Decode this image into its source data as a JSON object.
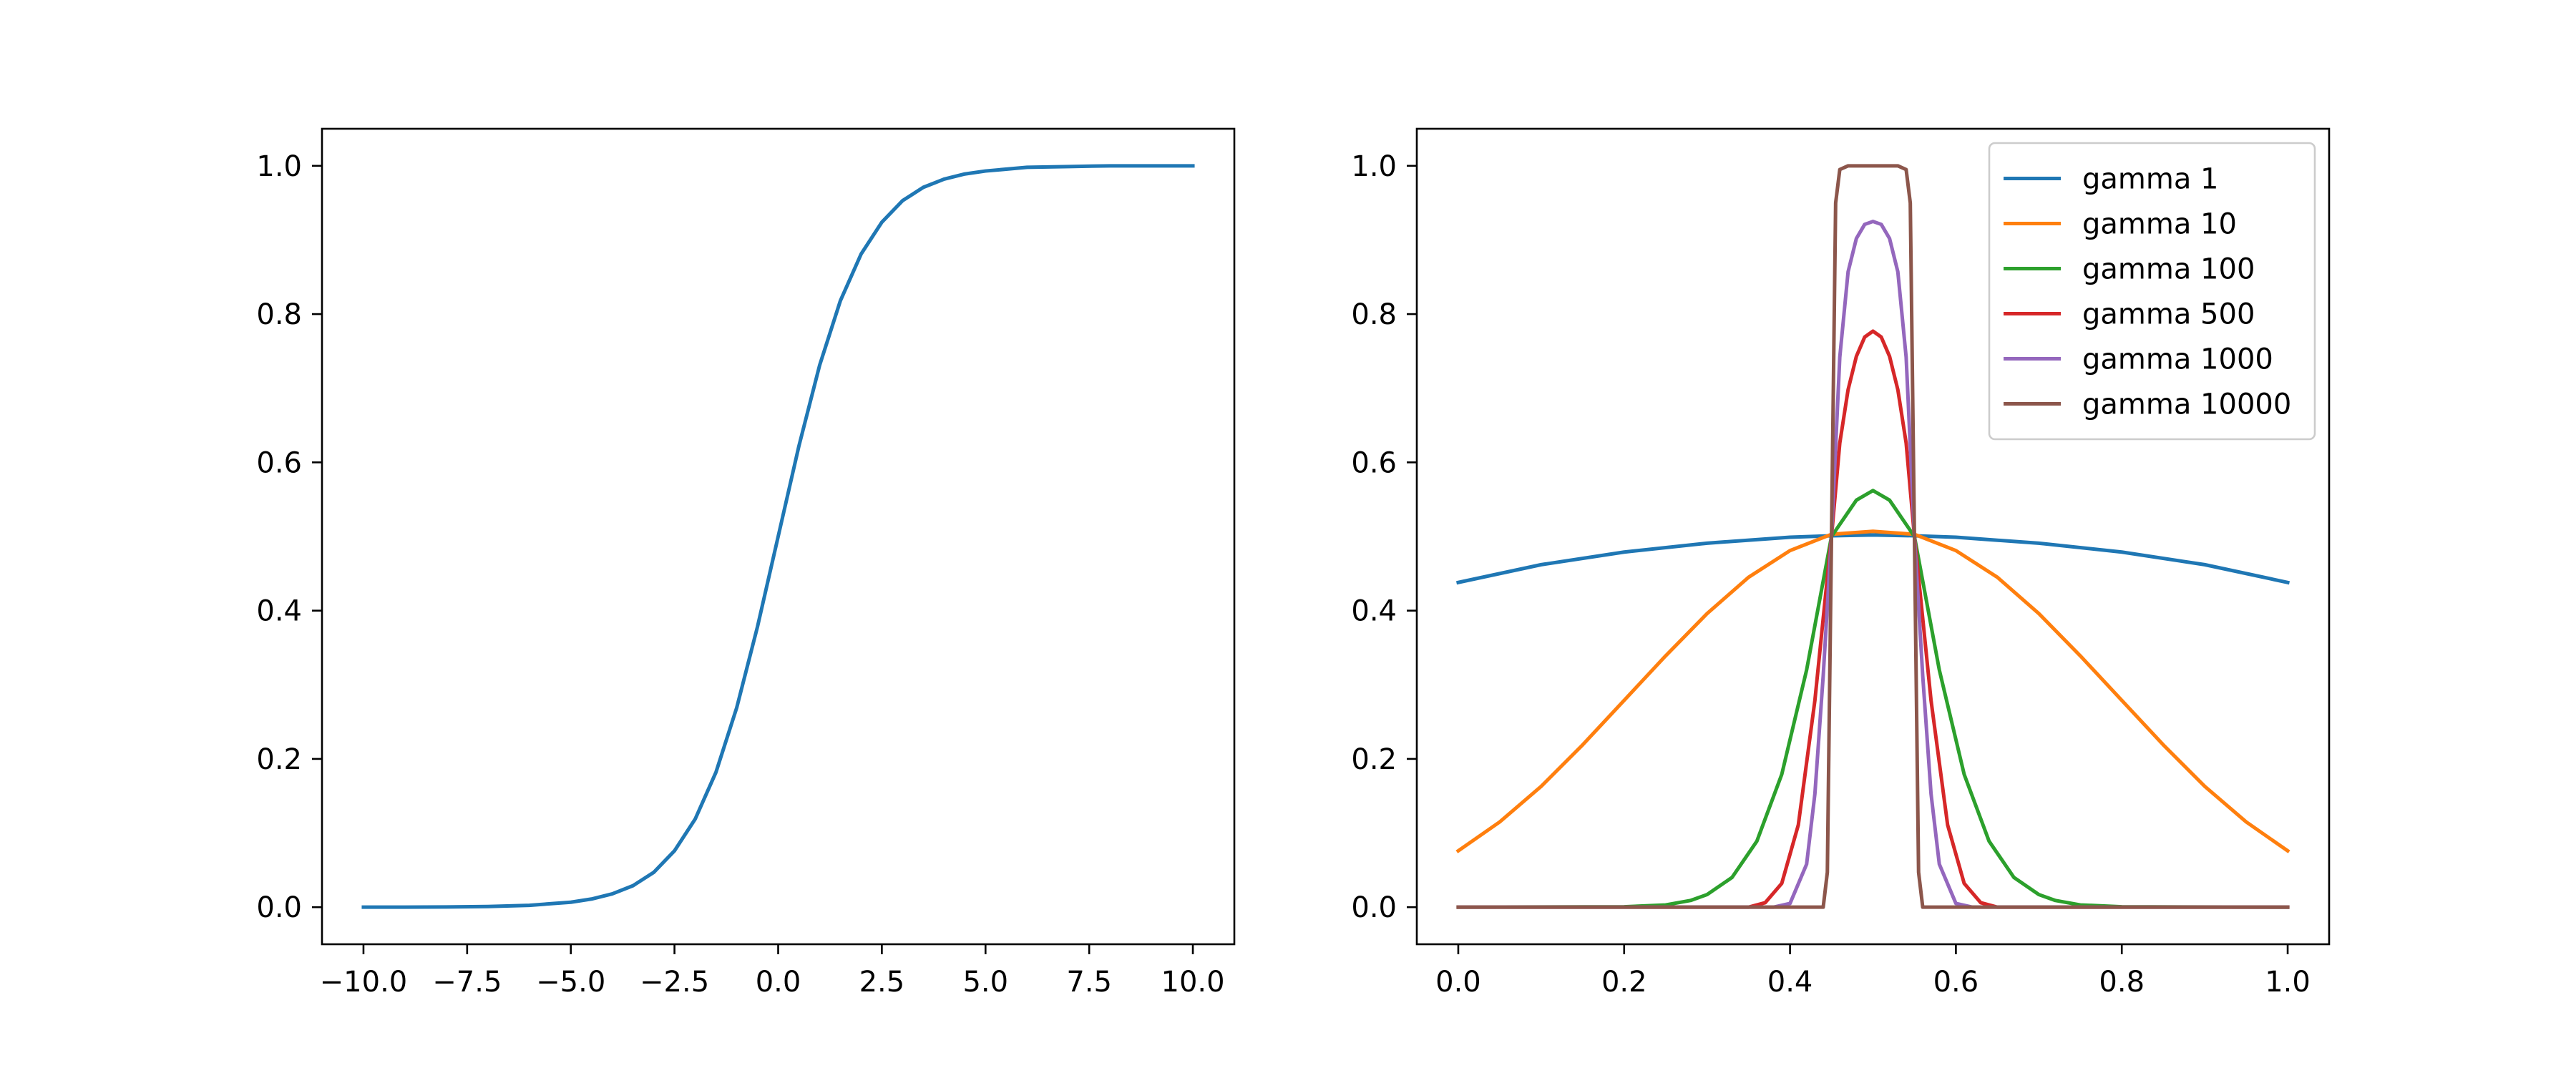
{
  "chart_data": [
    {
      "type": "line",
      "title": "",
      "xlabel": "",
      "ylabel": "",
      "xlim": [
        -11,
        11
      ],
      "ylim": [
        -0.05,
        1.05
      ],
      "xticks": [
        -10,
        -7.5,
        -5,
        -2.5,
        0,
        2.5,
        5,
        7.5,
        10
      ],
      "xtick_labels": [
        "−10.0",
        "−7.5",
        "−5.0",
        "−2.5",
        "0.0",
        "2.5",
        "5.0",
        "7.5",
        "10.0"
      ],
      "yticks": [
        0,
        0.2,
        0.4,
        0.6,
        0.8,
        1.0
      ],
      "ytick_labels": [
        "0.0",
        "0.2",
        "0.4",
        "0.6",
        "0.8",
        "1.0"
      ],
      "grid": false,
      "series": [
        {
          "color": "#1f77b4",
          "x": [
            -10,
            -9,
            -8,
            -7,
            -6,
            -5,
            -4.5,
            -4,
            -3.5,
            -3,
            -2.5,
            -2,
            -1.5,
            -1,
            -0.5,
            0,
            0.5,
            1,
            1.5,
            2,
            2.5,
            3,
            3.5,
            4,
            4.5,
            5,
            6,
            7,
            8,
            9,
            10
          ],
          "y": [
            0.0,
            0.0001,
            0.0003,
            0.0009,
            0.0025,
            0.0067,
            0.011,
            0.018,
            0.029,
            0.047,
            0.076,
            0.119,
            0.182,
            0.269,
            0.378,
            0.5,
            0.622,
            0.731,
            0.818,
            0.881,
            0.924,
            0.953,
            0.971,
            0.982,
            0.989,
            0.993,
            0.998,
            0.999,
            1.0,
            1.0,
            1.0
          ]
        }
      ]
    },
    {
      "type": "line",
      "title": "",
      "xlabel": "",
      "ylabel": "",
      "xlim": [
        -0.05,
        1.05
      ],
      "ylim": [
        -0.05,
        1.05
      ],
      "xticks": [
        0,
        0.2,
        0.4,
        0.6,
        0.8,
        1.0
      ],
      "xtick_labels": [
        "0.0",
        "0.2",
        "0.4",
        "0.6",
        "0.8",
        "1.0"
      ],
      "yticks": [
        0,
        0.2,
        0.4,
        0.6,
        0.8,
        1.0
      ],
      "ytick_labels": [
        "0.0",
        "0.2",
        "0.4",
        "0.6",
        "0.8",
        "1.0"
      ],
      "grid": false,
      "legend_position": "top-right",
      "series": [
        {
          "name": "gamma 1",
          "color": "#1f77b4",
          "x": [
            0,
            0.1,
            0.2,
            0.3,
            0.4,
            0.45,
            0.5,
            0.55,
            0.6,
            0.7,
            0.8,
            0.9,
            1.0
          ],
          "y": [
            0.438,
            0.462,
            0.479,
            0.491,
            0.499,
            0.501,
            0.502,
            0.501,
            0.499,
            0.491,
            0.479,
            0.462,
            0.438
          ]
        },
        {
          "name": "gamma 10",
          "color": "#ff7f0e",
          "x": [
            0,
            0.05,
            0.1,
            0.15,
            0.2,
            0.25,
            0.3,
            0.35,
            0.4,
            0.45,
            0.5,
            0.55,
            0.6,
            0.65,
            0.7,
            0.75,
            0.8,
            0.85,
            0.9,
            0.95,
            1.0
          ],
          "y": [
            0.076,
            0.115,
            0.163,
            0.219,
            0.279,
            0.339,
            0.396,
            0.445,
            0.481,
            0.503,
            0.507,
            0.503,
            0.481,
            0.445,
            0.396,
            0.339,
            0.279,
            0.219,
            0.163,
            0.115,
            0.076
          ]
        },
        {
          "name": "gamma 100",
          "color": "#2ca02c",
          "x": [
            0,
            0.2,
            0.25,
            0.28,
            0.3,
            0.33,
            0.36,
            0.39,
            0.42,
            0.45,
            0.48,
            0.5,
            0.52,
            0.55,
            0.58,
            0.61,
            0.64,
            0.67,
            0.7,
            0.72,
            0.75,
            0.8,
            1.0
          ],
          "y": [
            0.0,
            0.0005,
            0.003,
            0.009,
            0.017,
            0.04,
            0.089,
            0.179,
            0.32,
            0.5,
            0.549,
            0.562,
            0.549,
            0.5,
            0.32,
            0.179,
            0.089,
            0.04,
            0.017,
            0.009,
            0.003,
            0.0005,
            0.0
          ]
        },
        {
          "name": "gamma 500",
          "color": "#d62728",
          "x": [
            0,
            0.35,
            0.37,
            0.39,
            0.41,
            0.43,
            0.45,
            0.46,
            0.47,
            0.48,
            0.49,
            0.5,
            0.51,
            0.52,
            0.53,
            0.54,
            0.55,
            0.57,
            0.59,
            0.61,
            0.63,
            0.65,
            1.0
          ],
          "y": [
            0.0,
            0.0,
            0.006,
            0.032,
            0.111,
            0.279,
            0.5,
            0.626,
            0.698,
            0.743,
            0.769,
            0.777,
            0.769,
            0.743,
            0.698,
            0.626,
            0.5,
            0.279,
            0.111,
            0.032,
            0.006,
            0.0,
            0.0
          ]
        },
        {
          "name": "gamma 1000",
          "color": "#9467bd",
          "x": [
            0,
            0.38,
            0.4,
            0.42,
            0.43,
            0.44,
            0.45,
            0.46,
            0.47,
            0.48,
            0.49,
            0.5,
            0.51,
            0.52,
            0.53,
            0.54,
            0.55,
            0.56,
            0.57,
            0.58,
            0.6,
            0.62,
            1.0
          ],
          "y": [
            0.0,
            0.0,
            0.005,
            0.058,
            0.153,
            0.312,
            0.5,
            0.742,
            0.857,
            0.902,
            0.921,
            0.925,
            0.921,
            0.902,
            0.857,
            0.742,
            0.5,
            0.312,
            0.153,
            0.058,
            0.005,
            0.0,
            0.0
          ]
        },
        {
          "name": "gamma 10000",
          "color": "#8c564b",
          "x": [
            0,
            0.43,
            0.44,
            0.445,
            0.45,
            0.455,
            0.46,
            0.47,
            0.5,
            0.53,
            0.54,
            0.545,
            0.55,
            0.555,
            0.56,
            0.57,
            1.0
          ],
          "y": [
            0.0,
            0.0,
            0.0,
            0.047,
            0.5,
            0.95,
            0.995,
            1.0,
            1.0,
            1.0,
            0.995,
            0.95,
            0.5,
            0.047,
            0.0,
            0.0,
            0.0
          ]
        }
      ]
    }
  ]
}
